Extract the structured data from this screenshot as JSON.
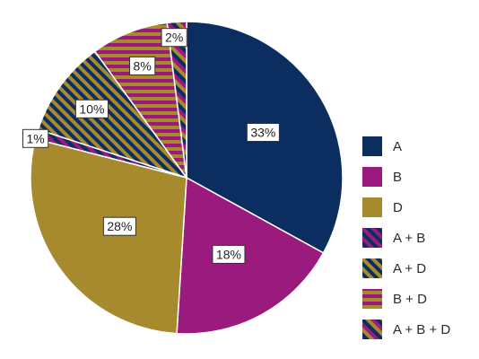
{
  "chart_data": {
    "type": "pie",
    "start": "12 o'clock",
    "direction": "clockwise",
    "slices": [
      {
        "name": "A",
        "value": 33,
        "label": "33%",
        "fill": "solid",
        "colors": [
          "#0b2d60"
        ]
      },
      {
        "name": "B",
        "value": 18,
        "label": "18%",
        "fill": "solid",
        "colors": [
          "#9b1a7e"
        ]
      },
      {
        "name": "D",
        "value": 28,
        "label": "28%",
        "fill": "solid",
        "colors": [
          "#a88a2e"
        ]
      },
      {
        "name": "A + B",
        "value": 1,
        "label": "1%",
        "fill": "diagonal-stripes",
        "colors": [
          "#0b2d60",
          "#9b1a7e"
        ]
      },
      {
        "name": "A + D",
        "value": 10,
        "label": "10%",
        "fill": "diagonal-stripes",
        "colors": [
          "#0b2d60",
          "#a88a2e"
        ]
      },
      {
        "name": "B + D",
        "value": 8,
        "label": "8%",
        "fill": "horizontal-stripes",
        "colors": [
          "#9b1a7e",
          "#a88a2e"
        ]
      },
      {
        "name": "A + B + D",
        "value": 2,
        "label": "2%",
        "fill": "diagonal-stripes",
        "colors": [
          "#0b2d60",
          "#9b1a7e",
          "#a88a2e"
        ]
      }
    ],
    "legend_position": "right",
    "legend_order": [
      "A",
      "B",
      "D",
      "A + B",
      "A + D",
      "B + D",
      "A + B + D"
    ]
  }
}
